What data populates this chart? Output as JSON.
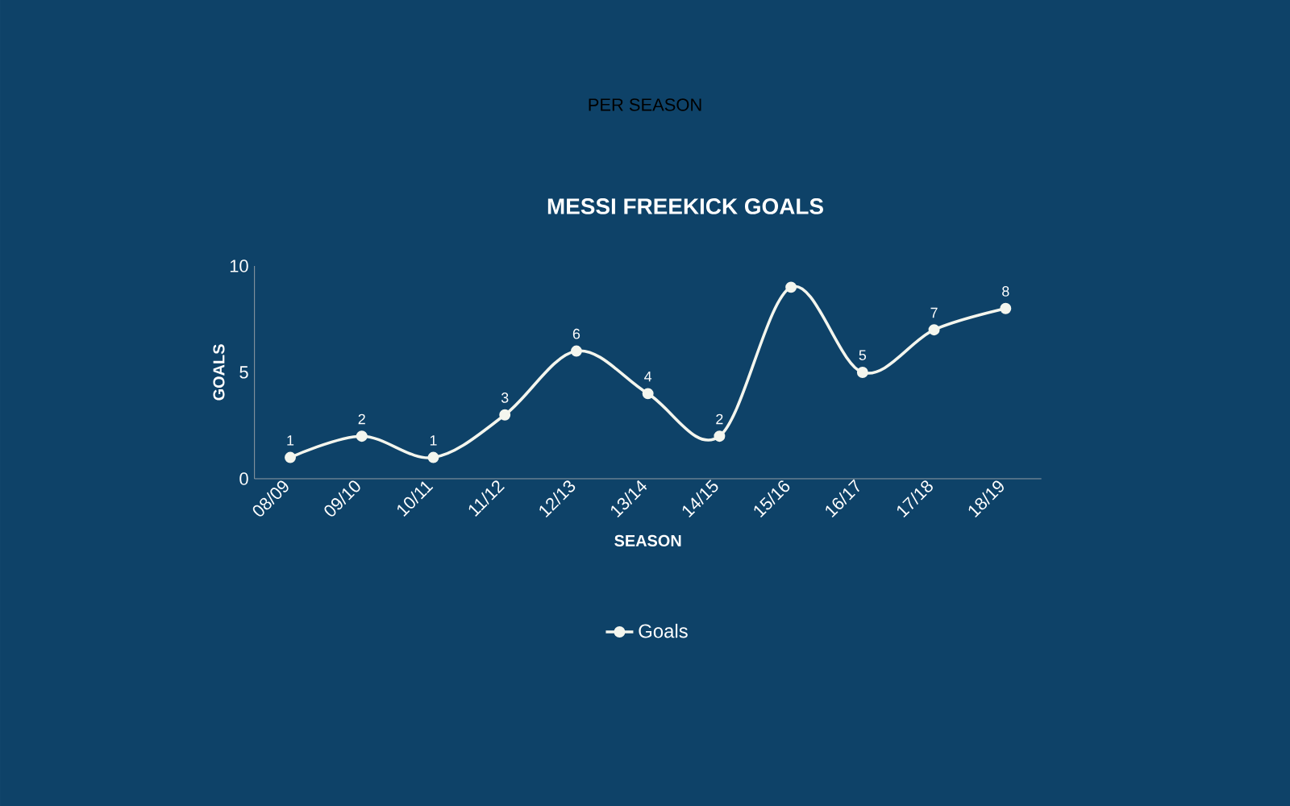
{
  "chart_data": {
    "type": "line",
    "title": "MESSI FREEKICK GOALS",
    "subtitle": "PER SEASON",
    "xlabel": "SEASON",
    "ylabel": "GOALS",
    "categories": [
      "08/09",
      "09/10",
      "10/11",
      "11/12",
      "12/13",
      "13/14",
      "14/15",
      "15/16",
      "16/17",
      "17/18",
      "18/19"
    ],
    "series": [
      {
        "name": "Goals",
        "color": "#f4f6ee",
        "values": [
          1,
          2,
          1,
          3,
          6,
          4,
          2,
          9,
          5,
          7,
          8
        ],
        "value_labels": [
          "1",
          "2",
          "1",
          "3",
          "6",
          "4",
          "2",
          null,
          "5",
          "7",
          "8"
        ]
      }
    ],
    "ylim": [
      0,
      10
    ],
    "yticks": [
      0,
      5,
      10
    ],
    "marker": "circle",
    "line_style": "solid",
    "legend": "bottom"
  }
}
